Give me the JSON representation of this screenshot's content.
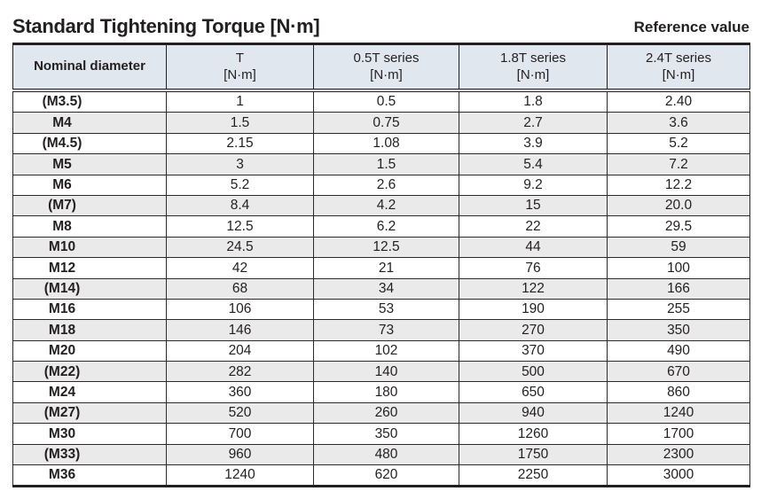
{
  "header": {
    "title": "Standard Tightening Torque [N·m]",
    "reference_label": "Reference value"
  },
  "table": {
    "columns": [
      {
        "label": "Nominal diameter",
        "unit": ""
      },
      {
        "label": "T",
        "unit": "[N·m]"
      },
      {
        "label": "0.5T series",
        "unit": "[N·m]"
      },
      {
        "label": "1.8T series",
        "unit": "[N·m]"
      },
      {
        "label": "2.4T series",
        "unit": "[N·m]"
      }
    ],
    "rows": [
      {
        "diameter": "(M3.5)",
        "values": [
          "1",
          "0.5",
          "1.8",
          "2.40"
        ]
      },
      {
        "diameter": "M4",
        "values": [
          "1.5",
          "0.75",
          "2.7",
          "3.6"
        ]
      },
      {
        "diameter": "(M4.5)",
        "values": [
          "2.15",
          "1.08",
          "3.9",
          "5.2"
        ]
      },
      {
        "diameter": "M5",
        "values": [
          "3",
          "1.5",
          "5.4",
          "7.2"
        ]
      },
      {
        "diameter": "M6",
        "values": [
          "5.2",
          "2.6",
          "9.2",
          "12.2"
        ]
      },
      {
        "diameter": "(M7)",
        "values": [
          "8.4",
          "4.2",
          "15",
          "20.0"
        ]
      },
      {
        "diameter": "M8",
        "values": [
          "12.5",
          "6.2",
          "22",
          "29.5"
        ]
      },
      {
        "diameter": "M10",
        "values": [
          "24.5",
          "12.5",
          "44",
          "59"
        ]
      },
      {
        "diameter": "M12",
        "values": [
          "42",
          "21",
          "76",
          "100"
        ]
      },
      {
        "diameter": "(M14)",
        "values": [
          "68",
          "34",
          "122",
          "166"
        ]
      },
      {
        "diameter": "M16",
        "values": [
          "106",
          "53",
          "190",
          "255"
        ]
      },
      {
        "diameter": "M18",
        "values": [
          "146",
          "73",
          "270",
          "350"
        ]
      },
      {
        "diameter": "M20",
        "values": [
          "204",
          "102",
          "370",
          "490"
        ]
      },
      {
        "diameter": "(M22)",
        "values": [
          "282",
          "140",
          "500",
          "670"
        ]
      },
      {
        "diameter": "M24",
        "values": [
          "360",
          "180",
          "650",
          "860"
        ]
      },
      {
        "diameter": "(M27)",
        "values": [
          "520",
          "260",
          "940",
          "1240"
        ]
      },
      {
        "diameter": "M30",
        "values": [
          "700",
          "350",
          "1260",
          "1700"
        ]
      },
      {
        "diameter": "(M33)",
        "values": [
          "960",
          "480",
          "1750",
          "2300"
        ]
      },
      {
        "diameter": "M36",
        "values": [
          "1240",
          "620",
          "2250",
          "3000"
        ]
      }
    ]
  },
  "colors": {
    "header_bg": "#e1e7ee",
    "alt_row_bg": "#eaeaea",
    "border": "#231f20",
    "text": "#231f20"
  }
}
